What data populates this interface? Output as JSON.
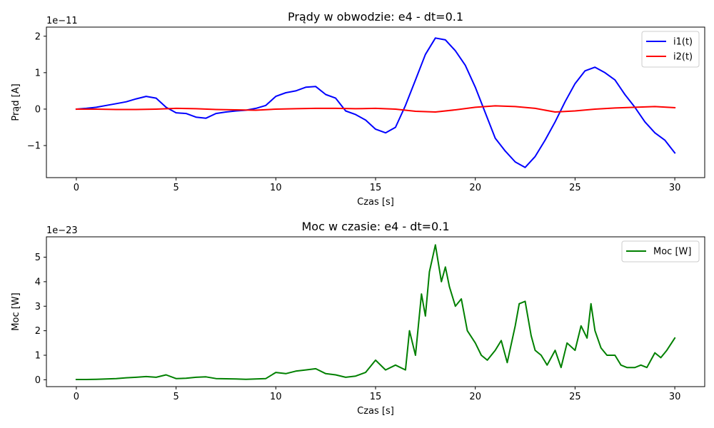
{
  "chart_data": [
    {
      "type": "line",
      "title": "Prądy w obwodzie: e4 - dt=0.1",
      "xlabel": "Czas [s]",
      "ylabel": "Prąd [A]",
      "offset_text": "1e−11",
      "xlim": [
        -1.5,
        31.5
      ],
      "ylim": [
        -1.88,
        2.25
      ],
      "xticks": [
        0,
        5,
        10,
        15,
        20,
        25,
        30
      ],
      "xtick_labels": [
        "0",
        "5",
        "10",
        "15",
        "20",
        "25",
        "30"
      ],
      "yticks": [
        -1,
        0,
        1,
        2
      ],
      "ytick_labels": [
        "−1",
        "0",
        "1",
        "2"
      ],
      "legend_position": "upper right",
      "grid": false,
      "series": [
        {
          "name": "i1(t)",
          "color": "#0000ff",
          "x": [
            0,
            0.5,
            1,
            1.5,
            2,
            2.5,
            3,
            3.5,
            4,
            4.5,
            5,
            5.5,
            6,
            6.5,
            7,
            7.5,
            8,
            8.5,
            9,
            9.5,
            10,
            10.5,
            11,
            11.5,
            12,
            12.5,
            13,
            13.5,
            14,
            14.5,
            15,
            15.5,
            16,
            16.5,
            17,
            17.5,
            18,
            18.5,
            19,
            19.5,
            20,
            20.5,
            21,
            21.5,
            22,
            22.5,
            23,
            23.5,
            24,
            24.5,
            25,
            25.5,
            26,
            26.5,
            27,
            27.5,
            28,
            28.5,
            29,
            29.5,
            30
          ],
          "y": [
            0,
            0.02,
            0.05,
            0.1,
            0.15,
            0.2,
            0.28,
            0.35,
            0.3,
            0.05,
            -0.1,
            -0.12,
            -0.22,
            -0.25,
            -0.12,
            -0.08,
            -0.05,
            -0.03,
            0.02,
            0.1,
            0.35,
            0.45,
            0.5,
            0.6,
            0.62,
            0.4,
            0.3,
            -0.05,
            -0.15,
            -0.3,
            -0.55,
            -0.65,
            -0.5,
            0.1,
            0.8,
            1.5,
            1.95,
            1.9,
            1.6,
            1.2,
            0.6,
            -0.1,
            -0.8,
            -1.15,
            -1.45,
            -1.6,
            -1.3,
            -0.85,
            -0.35,
            0.2,
            0.7,
            1.05,
            1.15,
            1.0,
            0.8,
            0.4,
            0.05,
            -0.35,
            -0.65,
            -0.85,
            -1.2
          ]
        },
        {
          "name": "i2(t)",
          "color": "#ff0000",
          "x": [
            0,
            1,
            2,
            3,
            4,
            5,
            6,
            7,
            8,
            9,
            10,
            11,
            12,
            13,
            14,
            15,
            16,
            17,
            18,
            19,
            20,
            21,
            22,
            23,
            24,
            25,
            26,
            27,
            28,
            29,
            30
          ],
          "y": [
            0,
            0.0,
            -0.01,
            -0.01,
            0.0,
            0.02,
            0.01,
            -0.01,
            -0.02,
            -0.03,
            0.0,
            0.01,
            0.02,
            0.02,
            0.01,
            0.02,
            0.0,
            -0.06,
            -0.08,
            -0.02,
            0.05,
            0.09,
            0.07,
            0.02,
            -0.08,
            -0.05,
            0.0,
            0.03,
            0.05,
            0.07,
            0.04
          ]
        }
      ]
    },
    {
      "type": "line",
      "title": "Moc w czasie: e4 - dt=0.1",
      "xlabel": "Czas [s]",
      "ylabel": "Moc [W]",
      "offset_text": "1e−23",
      "xlim": [
        -1.5,
        31.5
      ],
      "ylim": [
        -0.28,
        5.83
      ],
      "xticks": [
        0,
        5,
        10,
        15,
        20,
        25,
        30
      ],
      "xtick_labels": [
        "0",
        "5",
        "10",
        "15",
        "20",
        "25",
        "30"
      ],
      "yticks": [
        0,
        1,
        2,
        3,
        4,
        5
      ],
      "ytick_labels": [
        "0",
        "1",
        "2",
        "3",
        "4",
        "5"
      ],
      "legend_position": "upper right",
      "grid": false,
      "series": [
        {
          "name": "Moc [W]",
          "color": "#008000",
          "x": [
            0,
            0.5,
            1,
            1.5,
            2,
            2.5,
            3,
            3.5,
            4,
            4.5,
            5,
            5.5,
            6,
            6.5,
            7,
            7.5,
            8,
            8.5,
            9,
            9.5,
            10,
            10.5,
            11,
            11.5,
            12,
            12.5,
            13,
            13.5,
            14,
            14.5,
            15,
            15.5,
            16,
            16.5,
            16.7,
            17,
            17.3,
            17.5,
            17.7,
            18,
            18.3,
            18.5,
            18.7,
            19,
            19.3,
            19.6,
            20,
            20.3,
            20.6,
            21,
            21.3,
            21.6,
            22,
            22.2,
            22.5,
            22.8,
            23,
            23.3,
            23.6,
            24,
            24.3,
            24.6,
            25,
            25.3,
            25.6,
            25.8,
            26,
            26.3,
            26.6,
            27,
            27.3,
            27.6,
            28,
            28.3,
            28.6,
            29,
            29.3,
            29.6,
            30
          ],
          "y": [
            0.01,
            0.01,
            0.02,
            0.03,
            0.05,
            0.08,
            0.1,
            0.13,
            0.1,
            0.2,
            0.05,
            0.06,
            0.1,
            0.12,
            0.05,
            0.04,
            0.03,
            0.02,
            0.03,
            0.05,
            0.3,
            0.25,
            0.35,
            0.4,
            0.45,
            0.25,
            0.2,
            0.1,
            0.15,
            0.3,
            0.8,
            0.4,
            0.6,
            0.4,
            2.0,
            1.0,
            3.5,
            2.6,
            4.4,
            5.5,
            4.0,
            4.6,
            3.8,
            3.0,
            3.3,
            2.0,
            1.5,
            1.0,
            0.8,
            1.2,
            1.6,
            0.7,
            2.2,
            3.1,
            3.2,
            1.8,
            1.2,
            1.0,
            0.6,
            1.2,
            0.5,
            1.5,
            1.2,
            2.2,
            1.7,
            3.1,
            2.0,
            1.3,
            1.0,
            1.0,
            0.6,
            0.5,
            0.5,
            0.6,
            0.5,
            1.1,
            0.9,
            1.2,
            1.7
          ]
        }
      ]
    }
  ]
}
